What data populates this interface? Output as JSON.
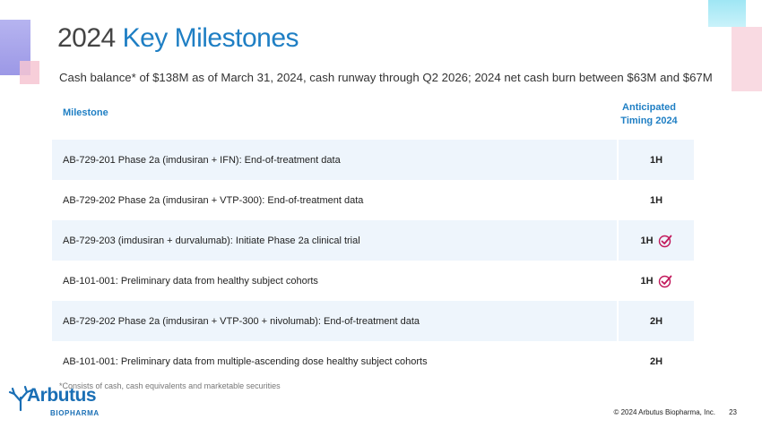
{
  "title": {
    "part1": "2024 ",
    "part2": "Key Milestones"
  },
  "subtitle": "Cash balance* of $138M as of March 31, 2024, cash runway through Q2 2026; 2024 net cash burn between $63M and $67M",
  "table": {
    "header_milestone": "Milestone",
    "header_timing_line1": "Anticipated",
    "header_timing_line2": "Timing 2024",
    "rows": [
      {
        "milestone": "AB-729-201 Phase 2a (imdusiran + IFN):  End-of-treatment data",
        "timing": "1H",
        "completed": false
      },
      {
        "milestone": "AB-729-202 Phase 2a (imdusiran + VTP-300):  End-of-treatment data",
        "timing": "1H",
        "completed": false
      },
      {
        "milestone": "AB-729-203 (imdusiran + durvalumab):  Initiate Phase 2a clinical trial",
        "timing": "1H",
        "completed": true
      },
      {
        "milestone": "AB-101-001: Preliminary data from healthy subject cohorts",
        "timing": "1H",
        "completed": true
      },
      {
        "milestone": "AB-729-202 Phase 2a (imdusiran + VTP-300 + nivolumab):  End-of-treatment data",
        "timing": "2H",
        "completed": false
      },
      {
        "milestone": "AB-101-001: Preliminary data from multiple-ascending dose healthy subject cohorts",
        "timing": "2H",
        "completed": false
      }
    ]
  },
  "footnote": "*Consists of cash, cash equivalents and marketable securities",
  "logo": {
    "name": "Arbutus",
    "sub": "BIOPHARMA"
  },
  "copyright": "© 2024 Arbutus Biopharma, Inc.",
  "page_number": "23",
  "colors": {
    "accent": "#1f7fc4",
    "row_shade": "#eef5fc",
    "check": "#c2185b"
  },
  "icons": {
    "completed": "check-circle-icon"
  }
}
